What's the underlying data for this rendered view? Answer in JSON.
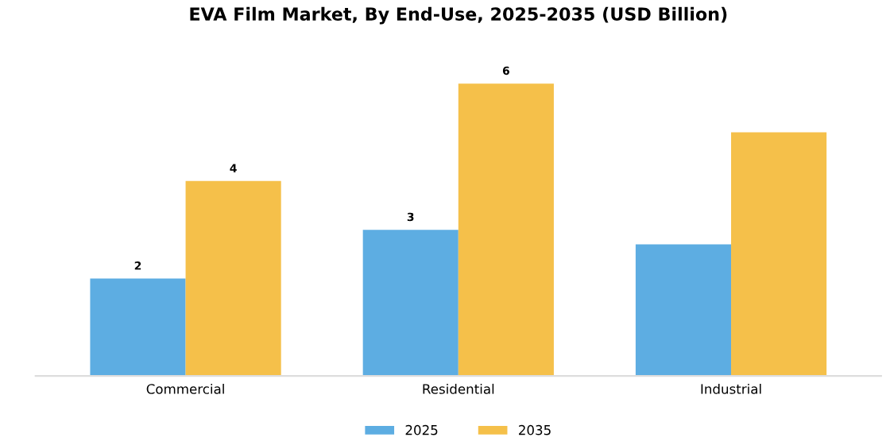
{
  "chart_data": {
    "type": "bar",
    "title": "EVA Film Market, By End-Use, 2025-2035 (USD Billion)",
    "categories": [
      "Commercial",
      "Residential",
      "Industrial"
    ],
    "series": [
      {
        "name": "2025",
        "color": "#5dade2",
        "values": [
          2,
          3,
          2.7
        ],
        "value_labels": [
          "2",
          "3",
          null
        ]
      },
      {
        "name": "2035",
        "color": "#f5c04a",
        "values": [
          4,
          6,
          5
        ],
        "value_labels": [
          "4",
          "6",
          null
        ]
      }
    ],
    "legend": "bottom",
    "grid": false
  }
}
